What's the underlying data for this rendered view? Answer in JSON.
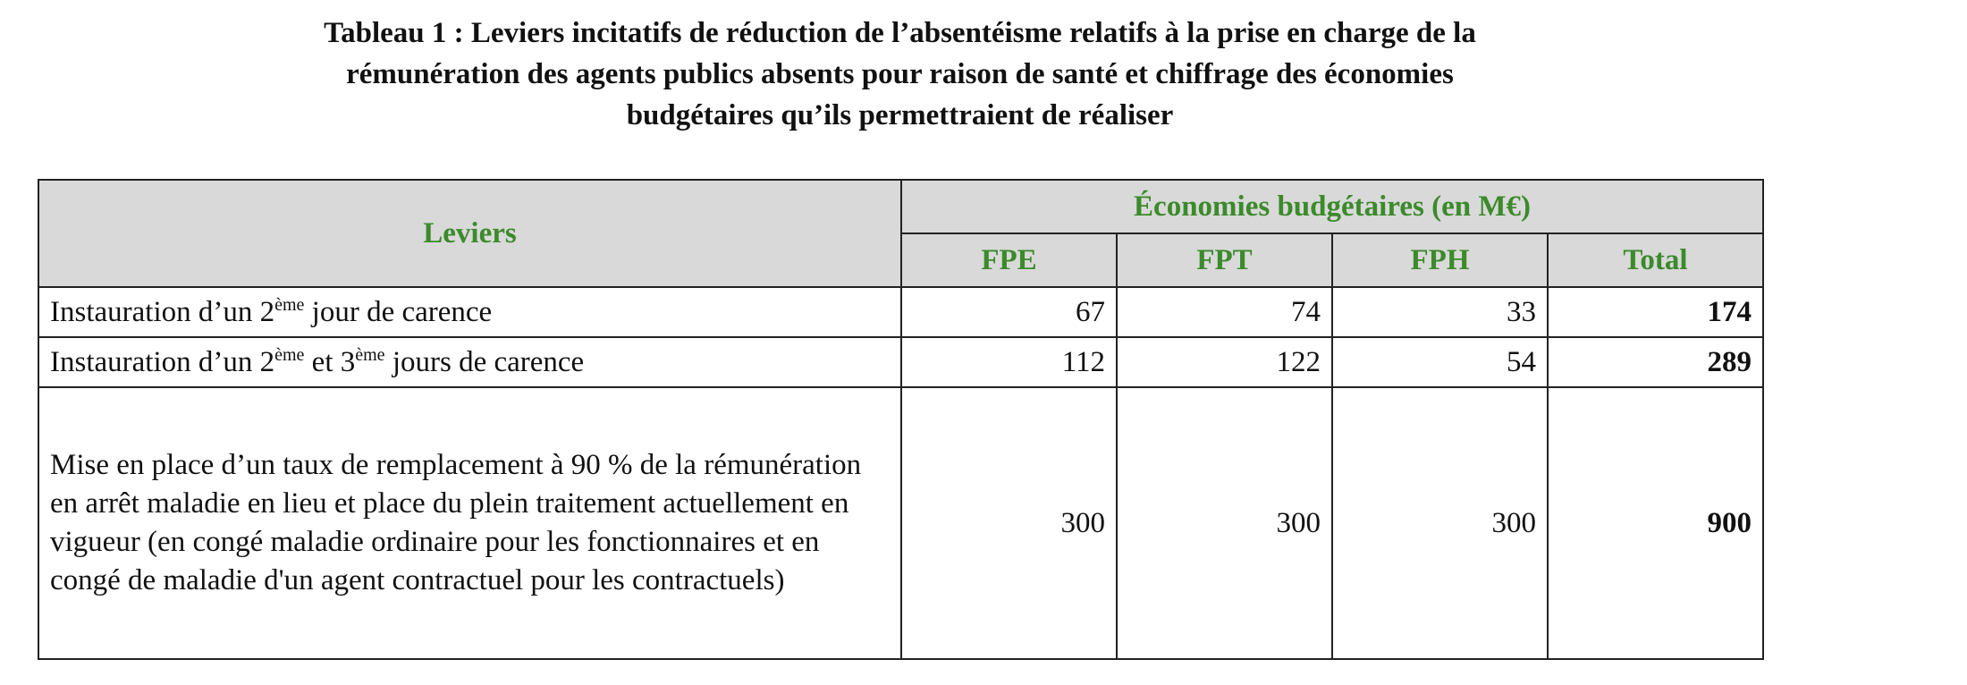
{
  "title": [
    "Tableau 1 : Leviers incitatifs de réduction de l’absentéisme relatifs à la prise en charge de la",
    "rémunération des agents publics absents pour raison de santé et chiffrage des économies",
    "budgétaires qu’ils permettraient de réaliser"
  ],
  "table": {
    "header": {
      "leviers": "Leviers",
      "group": "Économies budgétaires (en M€)",
      "columns": [
        "FPE",
        "FPT",
        "FPH",
        "Total"
      ]
    },
    "rows": [
      {
        "label": [
          "Instauration d’un 2",
          "ème",
          " jour de carence"
        ],
        "values": [
          67,
          74,
          33,
          174
        ]
      },
      {
        "label": [
          "Instauration d’un 2",
          "ème",
          " et 3",
          "ème",
          " jours de carence"
        ],
        "values": [
          112,
          122,
          54,
          289
        ]
      },
      {
        "label": [
          "Mise en place d’un taux de remplacement à 90 % de la rémunération en arrêt maladie en lieu et place du plein traitement actuellement en vigueur (en congé maladie ordinaire pour les fonctionnaires et en congé de maladie d'un agent contractuel pour les contractuels)"
        ],
        "values": [
          300,
          300,
          300,
          900
        ]
      }
    ]
  }
}
